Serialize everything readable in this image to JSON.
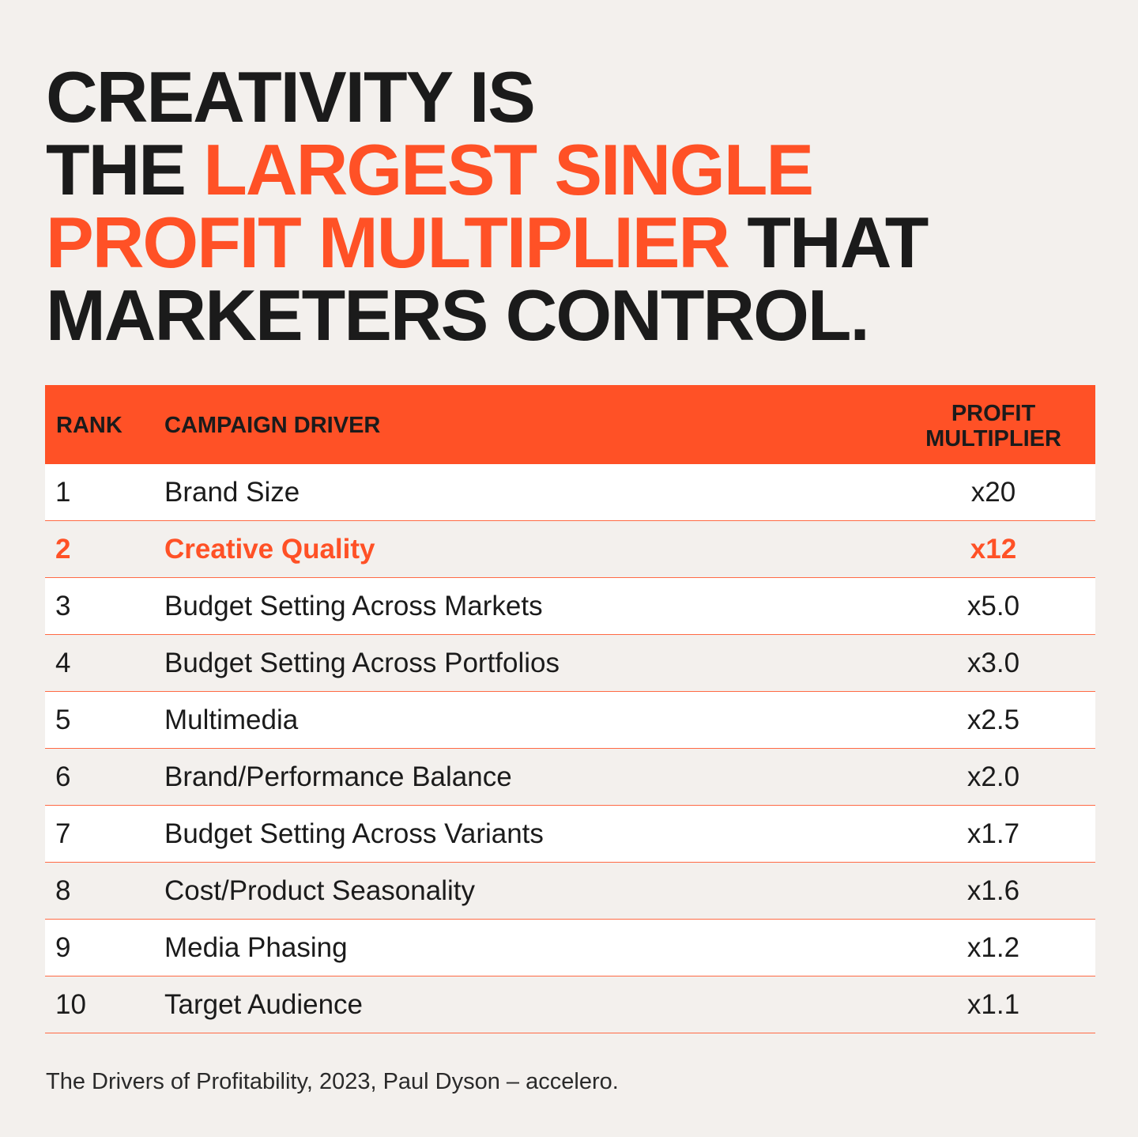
{
  "headline": {
    "line1": "CREATIVITY IS",
    "line2_pre": "THE ",
    "line2_highlight": "LARGEST SINGLE",
    "line3_highlight": "PROFIT MULTIPLIER",
    "line3_post": " THAT",
    "line4": "MARKETERS CONTROL."
  },
  "colors": {
    "accent": "#ff5126",
    "background": "#f3f0ed",
    "text": "#1b1b1b",
    "row_alt": "#ffffff"
  },
  "chart_data": {
    "type": "table",
    "columns": [
      "RANK",
      "CAMPAIGN DRIVER",
      "PROFIT MULTIPLIER"
    ],
    "column_header_lines": {
      "mult_line1": "PROFIT",
      "mult_line2": "MULTIPLIER"
    },
    "highlight_rank": 2,
    "rows": [
      {
        "rank": "1",
        "driver": "Brand Size",
        "multiplier": "x20"
      },
      {
        "rank": "2",
        "driver": "Creative Quality",
        "multiplier": "x12"
      },
      {
        "rank": "3",
        "driver": "Budget Setting Across Markets",
        "multiplier": "x5.0"
      },
      {
        "rank": "4",
        "driver": "Budget Setting Across Portfolios",
        "multiplier": "x3.0"
      },
      {
        "rank": "5",
        "driver": "Multimedia",
        "multiplier": "x2.5"
      },
      {
        "rank": "6",
        "driver": "Brand/Performance Balance",
        "multiplier": "x2.0"
      },
      {
        "rank": "7",
        "driver": "Budget Setting Across Variants",
        "multiplier": "x1.7"
      },
      {
        "rank": "8",
        "driver": "Cost/Product Seasonality",
        "multiplier": "x1.6"
      },
      {
        "rank": "9",
        "driver": "Media Phasing",
        "multiplier": "x1.2"
      },
      {
        "rank": "10",
        "driver": "Target Audience",
        "multiplier": "x1.1"
      }
    ]
  },
  "source": "The Drivers of Profitability, 2023, Paul Dyson – accelero."
}
